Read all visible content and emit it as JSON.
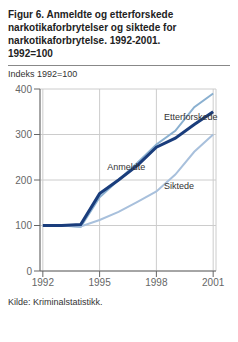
{
  "chart_data": {
    "type": "line",
    "title": "Figur 6. Anmeldte og etterforskede\nnarkotikaforbrytelser og siktede for\nnarkotikaforbrytelse. 1992-2001.\n1992=100",
    "ylabel": "Indeks 1992=100",
    "source": "Kilde: Kriminalstatistikk.",
    "x": [
      1992,
      1993,
      1994,
      1995,
      1996,
      1997,
      1998,
      1999,
      2000,
      2001
    ],
    "series": [
      {
        "name": "Etterforskede",
        "color": "#8ab0d0",
        "values": [
          100,
          100,
          97,
          162,
          200,
          238,
          278,
          308,
          360,
          390
        ]
      },
      {
        "name": "Siktede",
        "color": "#a8c0dc",
        "values": [
          100,
          100,
          98,
          112,
          130,
          152,
          175,
          212,
          262,
          300
        ]
      },
      {
        "name": "Anmeldte",
        "color": "#1a3d7c",
        "values": [
          100,
          100,
          102,
          170,
          200,
          232,
          272,
          292,
          322,
          350
        ]
      }
    ],
    "annotations": [
      {
        "text": "Anmeldte",
        "x": 1995.4,
        "y": 228
      },
      {
        "text": "Etterforskede",
        "x": 1998.4,
        "y": 338
      },
      {
        "text": "Siktede",
        "x": 1998.4,
        "y": 188
      }
    ],
    "xlim": [
      1991.85,
      2001.15
    ],
    "xticks": [
      1992,
      1995,
      1998,
      2001
    ],
    "ylim": [
      0,
      400
    ],
    "yticks": [
      0,
      100,
      200,
      300,
      400
    ],
    "grid": true
  }
}
